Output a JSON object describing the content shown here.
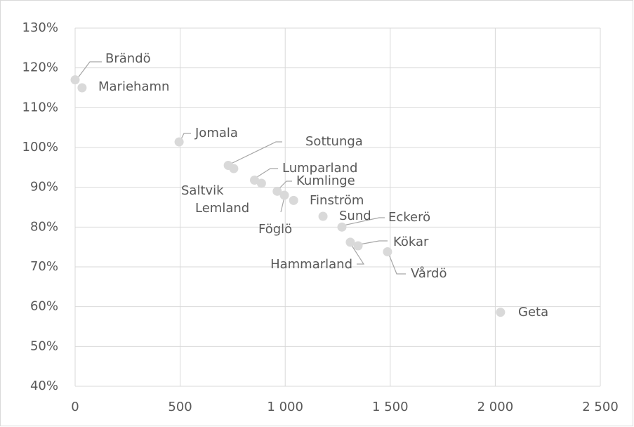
{
  "chart_data": {
    "type": "scatter",
    "x": [
      0,
      33,
      495,
      729,
      755,
      854,
      887,
      962,
      996,
      1040,
      1180,
      1270,
      1310,
      1347,
      1487,
      2025
    ],
    "values": [
      117,
      115,
      101.4,
      95.5,
      94.7,
      91.8,
      91,
      89,
      88,
      86.7,
      82.7,
      80,
      76.2,
      75.3,
      73.8,
      58.6
    ],
    "point_labels": [
      "Brändö",
      "Mariehamn",
      "Jomala",
      "Sottunga",
      "Saltvik",
      "Lumparland",
      "Lemland",
      "Kumlinge",
      "Föglö",
      "Finström",
      "Sund",
      "Eckerö",
      "Hammarland",
      "Kökar",
      "Vårdö",
      "Geta"
    ],
    "color": "#d9d9d9",
    "xlim": [
      0,
      2500
    ],
    "xticks": [
      0,
      500,
      {
        "value": 1000,
        "label": "1 000"
      },
      {
        "value": 1500,
        "label": "1 500"
      },
      {
        "value": 2000,
        "label": "2 000"
      },
      {
        "value": 2500,
        "label": "2 500"
      }
    ],
    "ylim": [
      40,
      130
    ],
    "yticks": [
      {
        "value": 40,
        "label": "40%"
      },
      {
        "value": 50,
        "label": "50%"
      },
      {
        "value": 60,
        "label": "60%"
      },
      {
        "value": 70,
        "label": "70%"
      },
      {
        "value": 80,
        "label": "80%"
      },
      {
        "value": 90,
        "label": "90%"
      },
      {
        "value": 100,
        "label": "100%"
      },
      {
        "value": 110,
        "label": "110%"
      },
      {
        "value": 120,
        "label": "120%"
      },
      {
        "value": 130,
        "label": "130%"
      }
    ],
    "grid": true
  }
}
